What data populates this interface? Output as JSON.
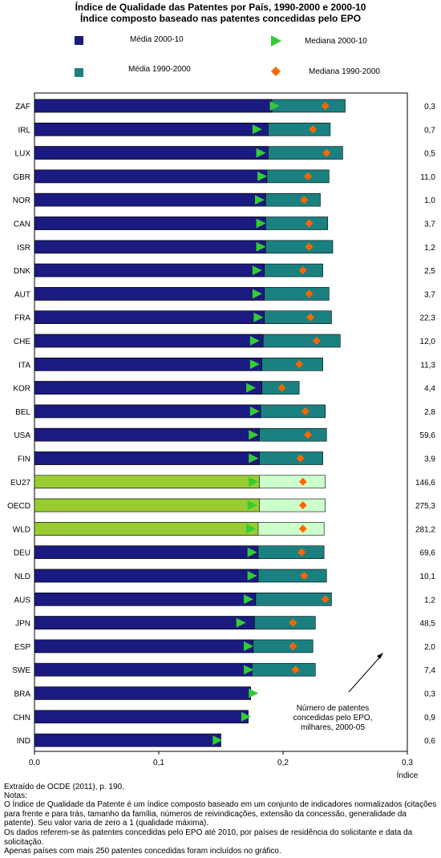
{
  "chart_data": {
    "type": "bar",
    "title": "Índice de Qualidade das Patentes por País, 1990-2000 e 2000-10",
    "subtitle": "Índice composto baseado nas patentes concedidas pelo EPO",
    "xlabel": "Índice",
    "xlim": [
      0,
      0.3
    ],
    "xticks": [
      "0,0",
      "0,1",
      "0,2",
      "0,3"
    ],
    "legend": {
      "mean_2000_10": "Média 2000-10",
      "mean_1990_2000": "Média 1990-2000",
      "median_2000_10": "Mediana  2000-10",
      "median_1990_2000": "Mediana  1990-2000"
    },
    "colors": {
      "mean_2000_10": "#1a1a80",
      "mean_1990_2000": "#1a8080",
      "aggregate_2000_10": "#99cc33",
      "aggregate_1990_2000": "#ccffcc",
      "median_2000_10": "#33cc33",
      "median_1990_2000": "#ff6600"
    },
    "categories": [
      "ZAF",
      "IRL",
      "LUX",
      "GBR",
      "NOR",
      "CAN",
      "ISR",
      "DNK",
      "AUT",
      "FRA",
      "CHE",
      "ITA",
      "KOR",
      "BEL",
      "USA",
      "FIN",
      "EU27",
      "OECD",
      "WLD",
      "DEU",
      "NLD",
      "AUS",
      "JPN",
      "ESP",
      "SWE",
      "BRA",
      "CHN",
      "IND"
    ],
    "aggregates": [
      "EU27",
      "OECD",
      "WLD"
    ],
    "series": [
      {
        "name": "Média 2000-10",
        "values": [
          0.191,
          0.188,
          0.188,
          0.187,
          0.186,
          0.186,
          0.186,
          0.185,
          0.185,
          0.185,
          0.184,
          0.183,
          0.183,
          0.182,
          0.181,
          0.181,
          0.181,
          0.181,
          0.18,
          0.18,
          0.18,
          0.178,
          0.177,
          0.176,
          0.175,
          0.174,
          0.172,
          0.15
        ]
      },
      {
        "name": "Média 1990-2000",
        "values": [
          0.25,
          0.238,
          0.248,
          0.237,
          0.23,
          0.236,
          0.24,
          0.232,
          0.237,
          0.239,
          0.246,
          0.232,
          0.213,
          0.234,
          0.235,
          0.232,
          0.234,
          0.234,
          0.233,
          0.233,
          0.235,
          0.239,
          0.226,
          0.224,
          0.226,
          null,
          null,
          null
        ]
      },
      {
        "name": "Mediana  2000-10",
        "values": [
          0.192,
          0.178,
          0.181,
          0.182,
          0.18,
          0.181,
          0.181,
          0.178,
          0.178,
          0.179,
          0.176,
          0.176,
          0.173,
          0.176,
          0.175,
          0.175,
          0.175,
          0.174,
          0.173,
          0.174,
          0.174,
          0.171,
          0.165,
          0.171,
          0.171,
          0.175,
          0.169,
          0.146
        ]
      },
      {
        "name": "Mediana  1990-2000",
        "values": [
          0.234,
          0.224,
          0.235,
          0.22,
          0.217,
          0.221,
          0.221,
          0.216,
          0.221,
          0.222,
          0.227,
          0.213,
          0.199,
          0.218,
          0.22,
          0.214,
          0.216,
          0.216,
          0.216,
          0.215,
          0.217,
          0.234,
          0.208,
          0.208,
          0.21,
          null,
          null,
          null
        ]
      }
    ],
    "patents_thousands": [
      "0,3",
      "0,7",
      "0,5",
      "11,0",
      "1,0",
      "3,7",
      "1,2",
      "2,5",
      "3,7",
      "22,3",
      "12,0",
      "11,3",
      "4,4",
      "2,8",
      "59,6",
      "3,9",
      "146,6",
      "275,3",
      "281,2",
      "69,6",
      "10,1",
      "1,2",
      "48,5",
      "2,0",
      "7,4",
      "0,3",
      "0,9",
      "0,6"
    ],
    "annotation": "Número de patentes concedidas pelo EPO, milhares, 2000-05"
  },
  "notes": {
    "source": "Extraído de OCDE (2011), p. 190.",
    "heading": "Notas:",
    "note1": "O Índice de Qualidade da Patente é um índice composto baseado em um conjunto de indicadores normalizados (citações para frente e para trás, tamanho da família, números de reivindicações, extensão da concessão, generalidade da patente). Seu valor varia de zero a 1 (qualidade máxima).",
    "note2": "Os dados referem-se às patentes concedidas pelo EPO até 2010, por países de residência do solicitante e data da solicitação.",
    "note3": "Apenas países com mais 250 patentes concedidas foram incluídos no gráfico."
  }
}
